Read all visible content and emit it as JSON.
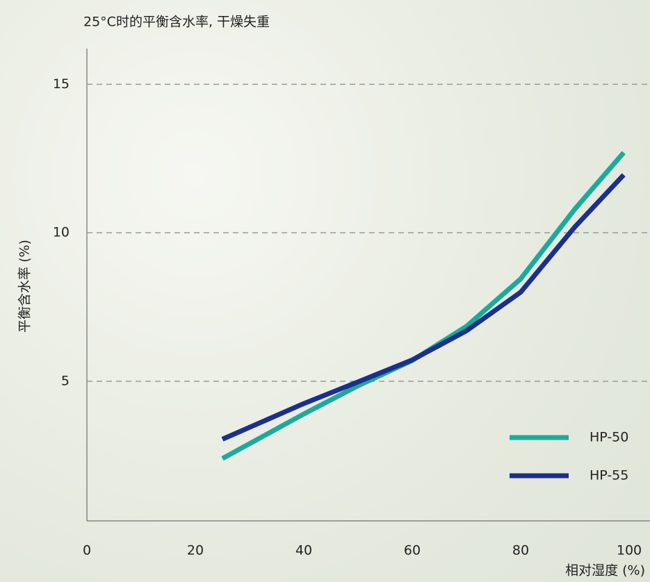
{
  "chart_data": {
    "type": "line",
    "title": "25°C时的平衡含水率, 干燥失重",
    "x_label": "相对湿度 (%)",
    "y_label": "平衡含水率 (%)",
    "x": [
      25,
      40,
      50,
      60,
      70,
      80,
      90,
      99
    ],
    "series": [
      {
        "name": "HP-50",
        "color": "#1aab9c",
        "values": [
          2.4,
          3.9,
          4.85,
          5.7,
          6.85,
          8.45,
          10.8,
          12.7
        ]
      },
      {
        "name": "HP-55",
        "color": "#1b2f8c",
        "values": [
          3.05,
          4.25,
          4.98,
          5.72,
          6.7,
          8.0,
          10.2,
          11.95
        ]
      }
    ],
    "xlim": [
      0,
      100
    ],
    "xticks": [
      0,
      20,
      40,
      60,
      80,
      100
    ],
    "ylim": [
      0.3,
      16.2
    ],
    "yticks": [
      5,
      10,
      15
    ],
    "grid": true,
    "legend": "lower right"
  }
}
